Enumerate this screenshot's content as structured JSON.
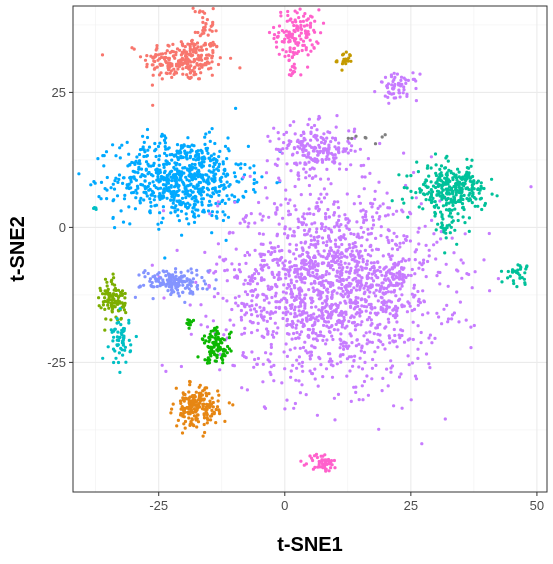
{
  "chart_data": {
    "type": "scatter",
    "title": "",
    "xlabel": "t-SNE1",
    "ylabel": "t-SNE2",
    "xlim": [
      -42,
      52
    ],
    "ylim": [
      -49,
      41
    ],
    "x_ticks": [
      -25,
      0,
      25,
      50
    ],
    "x_tick_labels": [
      "-25",
      "0",
      "25",
      "50"
    ],
    "y_ticks": [
      -25,
      0,
      25
    ],
    "y_tick_labels": [
      "-25",
      "0",
      "25"
    ],
    "grid": true,
    "legend": "none",
    "clusters": [
      {
        "color": "#f8766d",
        "center": [
          -20,
          31
        ],
        "spread": [
          4.0,
          2.0
        ],
        "n": 230,
        "extra": [
          [
            -16,
            37,
            1.0,
            3.0,
            40
          ]
        ]
      },
      {
        "color": "#ff61cc",
        "center": [
          2.5,
          36
        ],
        "spread": [
          2.2,
          2.2
        ],
        "n": 120,
        "extra": [
          [
            1.5,
            30.5,
            0.6,
            2.0,
            25
          ]
        ]
      },
      {
        "color": "#c49a00",
        "center": [
          12,
          31
        ],
        "spread": [
          0.8,
          0.8
        ],
        "n": 20
      },
      {
        "color": "#c77cff",
        "center": [
          22.5,
          26
        ],
        "spread": [
          2.0,
          1.2
        ],
        "n": 60
      },
      {
        "color": "#00a9ff",
        "center": [
          -20.5,
          9
        ],
        "spread": [
          6.5,
          3.8
        ],
        "n": 700
      },
      {
        "color": "#c77cff",
        "center": [
          6,
          14.5
        ],
        "spread": [
          4.0,
          2.4
        ],
        "n": 200
      },
      {
        "color": "#c77cff",
        "center": [
          9,
          -11
        ],
        "spread": [
          11.0,
          8.5
        ],
        "n": 1600
      },
      {
        "color": "#c77cff",
        "center": [
          21.5,
          -9.5
        ],
        "spread": [
          1.4,
          1.2
        ],
        "n": 50
      },
      {
        "color": "#00c19a",
        "center": [
          33,
          7
        ],
        "spread": [
          3.5,
          2.2
        ],
        "n": 300,
        "extra": [
          [
            32,
            0,
            0.8,
            1.5,
            25
          ]
        ]
      },
      {
        "color": "#00c19a",
        "center": [
          46,
          -8.5
        ],
        "spread": [
          1.2,
          1.0
        ],
        "n": 30
      },
      {
        "color": "#8494ff",
        "center": [
          -22,
          -10
        ],
        "spread": [
          3.2,
          1.2
        ],
        "n": 150
      },
      {
        "color": "#7cae00",
        "center": [
          -34,
          -13.5
        ],
        "spread": [
          1.2,
          2.0
        ],
        "n": 100
      },
      {
        "color": "#00bfc4",
        "center": [
          -32.5,
          -21
        ],
        "spread": [
          1.0,
          2.2
        ],
        "n": 60
      },
      {
        "color": "#0cb702",
        "center": [
          -13.5,
          -22
        ],
        "spread": [
          1.4,
          1.6
        ],
        "n": 100
      },
      {
        "color": "#0cb702",
        "center": [
          -19,
          -17.5
        ],
        "spread": [
          0.5,
          0.5
        ],
        "n": 10
      },
      {
        "color": "#e68613",
        "center": [
          -17.5,
          -33.5
        ],
        "spread": [
          2.2,
          1.8
        ],
        "n": 190
      },
      {
        "color": "#ff61cc",
        "center": [
          7.5,
          -43.5
        ],
        "spread": [
          1.4,
          0.8
        ],
        "n": 50
      },
      {
        "color": "#00bfc4",
        "center": [
          -37.5,
          3.5
        ],
        "spread": [
          0.3,
          0.3
        ],
        "n": 4
      },
      {
        "color": "#7f7f7f",
        "center": [
          16,
          16.5
        ],
        "spread": [
          2.5,
          1.0
        ],
        "n": 8
      }
    ]
  }
}
